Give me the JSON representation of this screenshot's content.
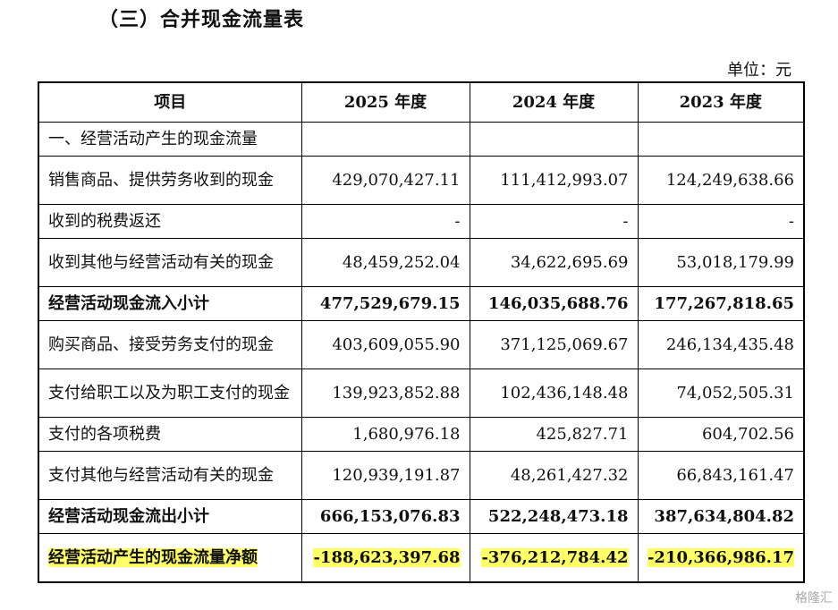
{
  "title": "（三）合并现金流量表",
  "unit": "单位：元",
  "headers": [
    "项目",
    "2025 年度",
    "2024 年度",
    "2023 年度"
  ],
  "rows": [
    {
      "item": "一、经营活动产生的现金流量",
      "v2025": "",
      "v2024": "",
      "v2023": ""
    },
    {
      "item": "销售商品、提供劳务收到的现金",
      "v2025": "429,070,427.11",
      "v2024": "111,412,993.07",
      "v2023": "124,249,638.66"
    },
    {
      "item": "收到的税费返还",
      "v2025": "-",
      "v2024": "-",
      "v2023": "-"
    },
    {
      "item": "收到其他与经营活动有关的现金",
      "v2025": "48,459,252.04",
      "v2024": "34,622,695.69",
      "v2023": "53,018,179.99"
    },
    {
      "item": "经营活动现金流入小计",
      "v2025": "477,529,679.15",
      "v2024": "146,035,688.76",
      "v2023": "177,267,818.65"
    },
    {
      "item": "购买商品、接受劳务支付的现金",
      "v2025": "403,609,055.90",
      "v2024": "371,125,069.67",
      "v2023": "246,134,435.48"
    },
    {
      "item": "支付给职工以及为职工支付的现金",
      "v2025": "139,923,852.88",
      "v2024": "102,436,148.48",
      "v2023": "74,052,505.31"
    },
    {
      "item": "支付的各项税费",
      "v2025": "1,680,976.18",
      "v2024": "425,827.71",
      "v2023": "604,702.56"
    },
    {
      "item": "支付其他与经营活动有关的现金",
      "v2025": "120,939,191.87",
      "v2024": "48,261,427.32",
      "v2023": "66,843,161.47"
    },
    {
      "item": "经营活动现金流出小计",
      "v2025": "666,153,076.83",
      "v2024": "522,248,473.18",
      "v2023": "387,634,804.82"
    },
    {
      "item": "经营活动产生的现金流量净额",
      "v2025": "-188,623,397.68",
      "v2024": "-376,212,784.42",
      "v2023": "-210,366,986.17"
    }
  ],
  "watermark": "格隆汇"
}
